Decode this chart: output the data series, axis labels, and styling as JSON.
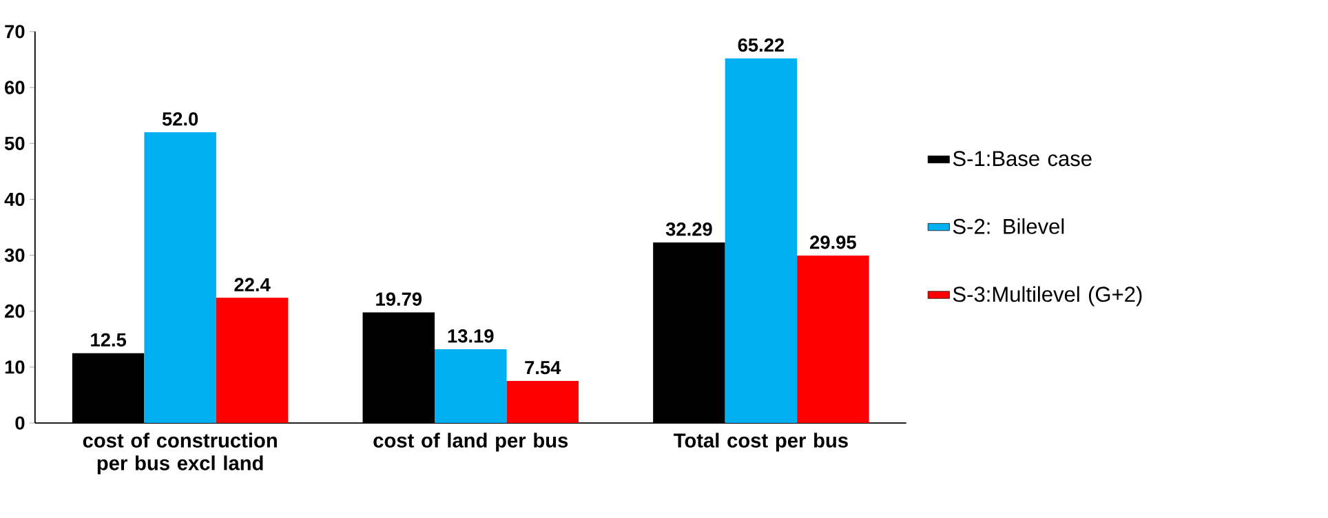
{
  "chart_data": {
    "type": "bar",
    "categories": [
      "cost of construction per bus excl land",
      "cost of land per bus",
      "Total cost per bus"
    ],
    "series": [
      {
        "name": "S-1:Base case",
        "color": "#000000",
        "values": [
          12.5,
          19.79,
          32.29
        ],
        "value_labels": [
          "12.5",
          "19.79",
          "32.29"
        ]
      },
      {
        "name": "S-2: Bilevel",
        "color": "#00b0f0",
        "values": [
          52.0,
          13.19,
          65.22
        ],
        "value_labels": [
          "52.0",
          "13.19",
          "65.22"
        ]
      },
      {
        "name": "S-3:Multilevel (G+2)",
        "color": "#ff0000",
        "values": [
          22.4,
          7.54,
          29.95
        ],
        "value_labels": [
          "22.4",
          "7.54",
          "29.95"
        ]
      }
    ],
    "ylim": [
      0,
      70
    ],
    "yticks": [
      0,
      10,
      20,
      30,
      40,
      50,
      60,
      70
    ],
    "grid": false,
    "legend": "right"
  }
}
